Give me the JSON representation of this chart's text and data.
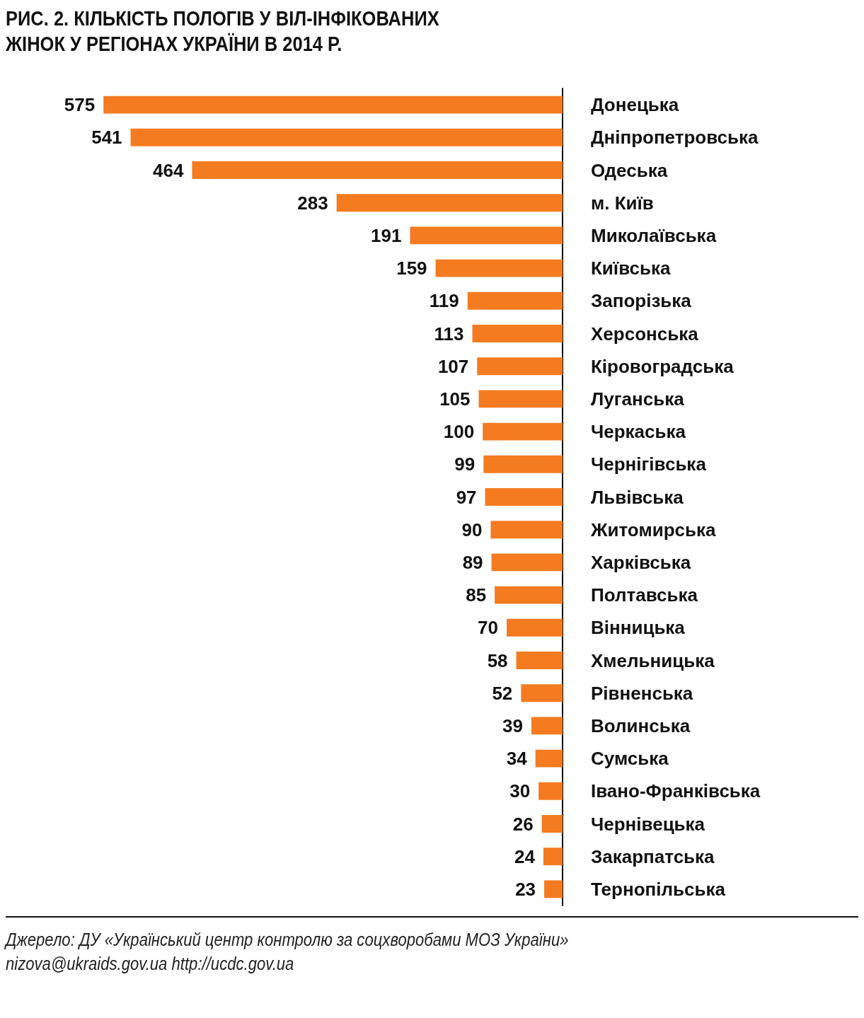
{
  "chart_data": {
    "type": "bar",
    "orientation": "horizontal",
    "title": "РИС. 2. КІЛЬКІСТЬ ПОЛОГІВ У ВІЛ-ІНФІКОВАНИХ ЖІНОК У РЕГІОНАХ УКРАЇНИ В 2014 Р.",
    "categories": [
      "Донецька",
      "Дніпропетровська",
      "Одеська",
      "м. Київ",
      "Миколаївська",
      "Київська",
      "Запорізька",
      "Херсонська",
      "Кіровоградська",
      "Луганська",
      "Черкаська",
      "Чернігівська",
      "Львівська",
      "Житомирська",
      "Харківська",
      "Полтавська",
      "Вінницька",
      "Хмельницька",
      "Рівненська",
      "Волинська",
      "Сумська",
      "Івано-Франківська",
      "Чернівецька",
      "Закарпатська",
      "Тернопільська"
    ],
    "values": [
      575,
      541,
      464,
      283,
      191,
      159,
      119,
      113,
      107,
      105,
      100,
      99,
      97,
      90,
      89,
      85,
      70,
      58,
      52,
      39,
      34,
      30,
      26,
      24,
      23
    ],
    "color": "#f47b20",
    "data_labels": true,
    "annotations": [
      "Джерело: ДУ «Український центр контролю за соцхворобами МОЗ України»",
      "nizova@ukraids.gov.ua http://ucdc.gov.ua"
    ]
  }
}
